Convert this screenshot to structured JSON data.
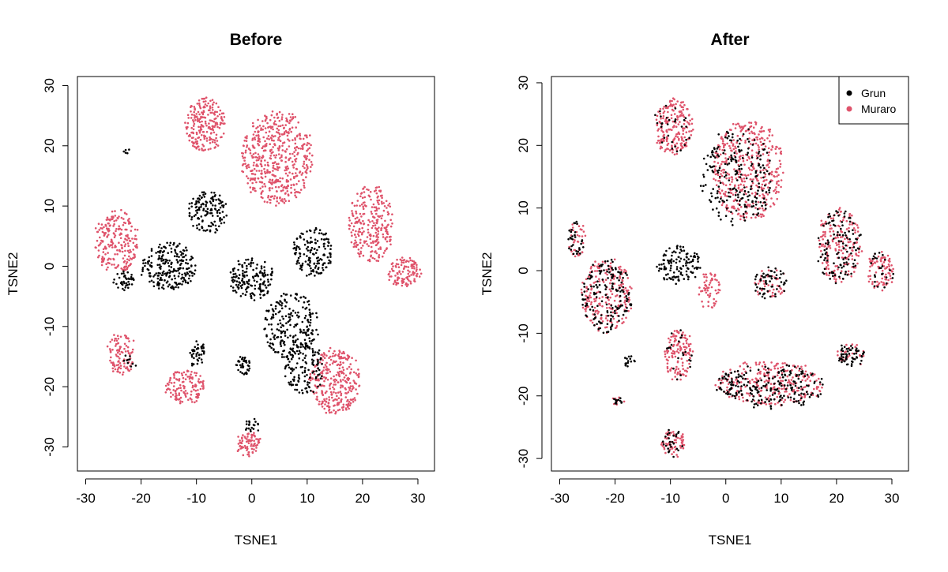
{
  "colors": {
    "grun": "#000000",
    "muraro": "#DF536B"
  },
  "chart_data": [
    {
      "type": "scatter",
      "title": "Before",
      "xlabel": "TSNE1",
      "ylabel": "TSNE2",
      "xlim": [
        -31.5,
        33
      ],
      "ylim": [
        -34,
        31.5
      ],
      "xticks": [
        -30,
        -20,
        -10,
        0,
        10,
        20,
        30
      ],
      "yticks": [
        -30,
        -20,
        -10,
        0,
        10,
        20,
        30
      ],
      "grid": false,
      "legend": null,
      "clusters": [
        {
          "series": "Muraro",
          "cx": -8.5,
          "cy": 23.5,
          "rx": 3.5,
          "ry": 4.5,
          "n": 220
        },
        {
          "series": "Muraro",
          "cx": 4.5,
          "cy": 18,
          "rx": 6.5,
          "ry": 8,
          "n": 520
        },
        {
          "series": "Muraro",
          "cx": -24.5,
          "cy": 4,
          "rx": 4,
          "ry": 5.5,
          "n": 220
        },
        {
          "series": "Muraro",
          "cx": 21.5,
          "cy": 7,
          "rx": 4,
          "ry": 6.5,
          "n": 260
        },
        {
          "series": "Muraro",
          "cx": 27.5,
          "cy": -1,
          "rx": 3,
          "ry": 2.5,
          "n": 110
        },
        {
          "series": "Muraro",
          "cx": -23.5,
          "cy": -14.5,
          "rx": 2.5,
          "ry": 3.5,
          "n": 100
        },
        {
          "series": "Muraro",
          "cx": -12,
          "cy": -20,
          "rx": 3.5,
          "ry": 2.8,
          "n": 130
        },
        {
          "series": "Muraro",
          "cx": 15,
          "cy": -19,
          "rx": 4.5,
          "ry": 5.5,
          "n": 300
        },
        {
          "series": "Muraro",
          "cx": -0.5,
          "cy": -29.5,
          "rx": 2.2,
          "ry": 2.0,
          "n": 80
        },
        {
          "series": "Grun",
          "cx": -8,
          "cy": 9,
          "rx": 3.5,
          "ry": 3.5,
          "n": 140
        },
        {
          "series": "Grun",
          "cx": -15,
          "cy": 0,
          "rx": 5,
          "ry": 4,
          "n": 230
        },
        {
          "series": "Grun",
          "cx": -23,
          "cy": -2.5,
          "rx": 2,
          "ry": 1.5,
          "n": 40
        },
        {
          "series": "Grun",
          "cx": 0,
          "cy": -2,
          "rx": 4,
          "ry": 3.5,
          "n": 160
        },
        {
          "series": "Grun",
          "cx": 11,
          "cy": 2.5,
          "rx": 3.5,
          "ry": 4,
          "n": 150
        },
        {
          "series": "Grun",
          "cx": 7,
          "cy": -10,
          "rx": 5,
          "ry": 5.5,
          "n": 230
        },
        {
          "series": "Grun",
          "cx": 9.5,
          "cy": -17,
          "rx": 3.5,
          "ry": 4.5,
          "n": 120
        },
        {
          "series": "Grun",
          "cx": -10,
          "cy": -14.5,
          "rx": 1.5,
          "ry": 2,
          "n": 40
        },
        {
          "series": "Grun",
          "cx": -1.5,
          "cy": -16.5,
          "rx": 1.2,
          "ry": 1.5,
          "n": 40
        },
        {
          "series": "Grun",
          "cx": 0,
          "cy": -26.5,
          "rx": 1.2,
          "ry": 1.2,
          "n": 20
        },
        {
          "series": "Grun",
          "cx": -22.5,
          "cy": 19,
          "rx": 0.6,
          "ry": 0.6,
          "n": 5
        },
        {
          "series": "Grun",
          "cx": -22,
          "cy": -16,
          "rx": 1,
          "ry": 1.5,
          "n": 10
        }
      ]
    },
    {
      "type": "scatter",
      "title": "After",
      "xlabel": "TSNE1",
      "ylabel": "TSNE2",
      "xlim": [
        -31.5,
        33
      ],
      "ylim": [
        -32,
        31
      ],
      "xticks": [
        -30,
        -20,
        -10,
        0,
        10,
        20,
        30
      ],
      "yticks": [
        -30,
        -20,
        -10,
        0,
        10,
        20,
        30
      ],
      "grid": false,
      "legend": {
        "position": "top-right",
        "entries": [
          {
            "label": "Grun",
            "color": "#000000"
          },
          {
            "label": "Muraro",
            "color": "#DF536B"
          }
        ]
      },
      "clusters": [
        {
          "series": "Muraro",
          "cx": -9.5,
          "cy": 23,
          "rx": 3.5,
          "ry": 4.5,
          "n": 200
        },
        {
          "series": "Grun",
          "cx": -9.5,
          "cy": 23,
          "rx": 3.5,
          "ry": 4.5,
          "n": 30
        },
        {
          "series": "Muraro",
          "cx": 4,
          "cy": 16,
          "rx": 6.5,
          "ry": 8,
          "n": 420
        },
        {
          "series": "Grun",
          "cx": 2,
          "cy": 15,
          "rx": 6.5,
          "ry": 8,
          "n": 220
        },
        {
          "series": "Muraro",
          "cx": 20.5,
          "cy": 4,
          "rx": 4,
          "ry": 6,
          "n": 180
        },
        {
          "series": "Grun",
          "cx": 20.5,
          "cy": 4,
          "rx": 4,
          "ry": 6,
          "n": 110
        },
        {
          "series": "Muraro",
          "cx": 28,
          "cy": 0,
          "rx": 2.5,
          "ry": 3,
          "n": 90
        },
        {
          "series": "Grun",
          "cx": 28,
          "cy": 0,
          "rx": 2.5,
          "ry": 3,
          "n": 25
        },
        {
          "series": "Muraro",
          "cx": -21.5,
          "cy": -4,
          "rx": 4.5,
          "ry": 6,
          "n": 210
        },
        {
          "series": "Grun",
          "cx": -21.5,
          "cy": -4,
          "rx": 4.5,
          "ry": 6,
          "n": 160
        },
        {
          "series": "Muraro",
          "cx": -27,
          "cy": 5,
          "rx": 1.5,
          "ry": 3,
          "n": 40
        },
        {
          "series": "Grun",
          "cx": -27,
          "cy": 5,
          "rx": 1.5,
          "ry": 3,
          "n": 30
        },
        {
          "series": "Grun",
          "cx": -8.5,
          "cy": 1,
          "rx": 4,
          "ry": 3,
          "n": 120
        },
        {
          "series": "Muraro",
          "cx": -3,
          "cy": -3,
          "rx": 2,
          "ry": 3,
          "n": 60
        },
        {
          "series": "Grun",
          "cx": 8,
          "cy": -2,
          "rx": 3,
          "ry": 2.5,
          "n": 60
        },
        {
          "series": "Muraro",
          "cx": 8,
          "cy": -2,
          "rx": 3,
          "ry": 2.5,
          "n": 40
        },
        {
          "series": "Muraro",
          "cx": -8.5,
          "cy": -13.5,
          "rx": 2.5,
          "ry": 4,
          "n": 130
        },
        {
          "series": "Grun",
          "cx": -8.5,
          "cy": -13.5,
          "rx": 2.5,
          "ry": 4,
          "n": 20
        },
        {
          "series": "Muraro",
          "cx": 8,
          "cy": -18,
          "rx": 10,
          "ry": 3.5,
          "n": 280
        },
        {
          "series": "Grun",
          "cx": 8,
          "cy": -18.5,
          "rx": 10,
          "ry": 3.5,
          "n": 220
        },
        {
          "series": "Grun",
          "cx": 22.5,
          "cy": -13.5,
          "rx": 2.5,
          "ry": 1.8,
          "n": 60
        },
        {
          "series": "Muraro",
          "cx": 22.5,
          "cy": -13.5,
          "rx": 2.5,
          "ry": 1.8,
          "n": 30
        },
        {
          "series": "Muraro",
          "cx": -9.5,
          "cy": -27.5,
          "rx": 2.2,
          "ry": 2.2,
          "n": 70
        },
        {
          "series": "Grun",
          "cx": -9.5,
          "cy": -27.5,
          "rx": 2.2,
          "ry": 2.2,
          "n": 25
        },
        {
          "series": "Grun",
          "cx": -17.5,
          "cy": -14.5,
          "rx": 1,
          "ry": 0.8,
          "n": 15
        },
        {
          "series": "Grun",
          "cx": -19.5,
          "cy": -20.8,
          "rx": 1,
          "ry": 0.6,
          "n": 12
        },
        {
          "series": "Muraro",
          "cx": -19.5,
          "cy": -20.8,
          "rx": 1,
          "ry": 0.6,
          "n": 8
        }
      ]
    }
  ]
}
